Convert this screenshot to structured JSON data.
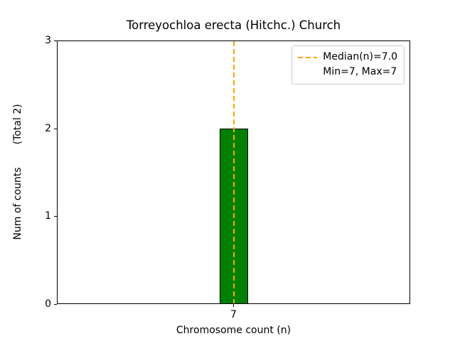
{
  "chart_data": {
    "type": "bar",
    "title": "Torreyochloa erecta (Hitchc.) Church",
    "xlabel": "Chromosome count (n)",
    "ylabel": "Num of counts",
    "ylabel_total": "(Total 2)",
    "categories": [
      "7"
    ],
    "values": [
      2
    ],
    "ylim": [
      0,
      3
    ],
    "yticks": [
      0,
      1,
      2,
      3
    ],
    "grid": false,
    "bar_color": "#008000",
    "bar_edge_color": "#000000",
    "median_line": {
      "x": 7,
      "color": "#FFA500",
      "style": "dashed"
    },
    "legend": {
      "position": "upper right",
      "entries": [
        {
          "label": "Median(n)=7.0",
          "marker": "dashed-line",
          "color": "#FFA500"
        },
        {
          "label": "Min=7, Max=7",
          "marker": "none"
        }
      ]
    }
  }
}
